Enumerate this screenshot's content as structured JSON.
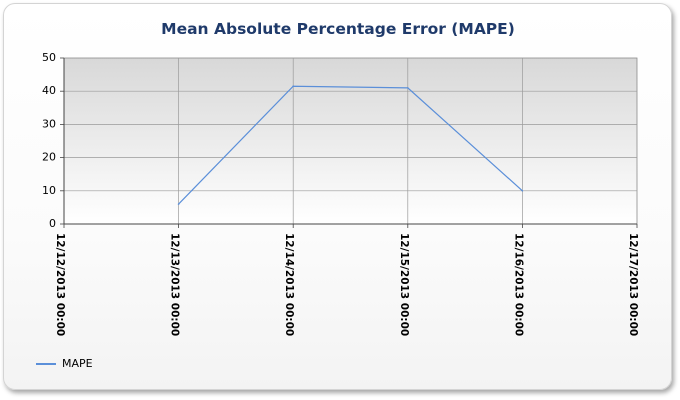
{
  "chart_data": {
    "type": "line",
    "title": "Mean Absolute Percentage Error (MAPE)",
    "xlabel": "",
    "ylabel": "",
    "x_ticks": [
      "12/12/2013 00:00",
      "12/13/2013 00:00",
      "12/14/2013 00:00",
      "12/15/2013 00:00",
      "12/16/2013 00:00",
      "12/17/2013 00:00"
    ],
    "ylim": [
      0,
      50
    ],
    "y_ticks": [
      0,
      10,
      20,
      30,
      40,
      50
    ],
    "grid": true,
    "legend_position": "bottom-left",
    "series": [
      {
        "name": "MAPE",
        "color": "#5b8fd9",
        "points": [
          {
            "x": "12/13/2013 00:00",
            "y": 6
          },
          {
            "x": "12/14/2013 00:00",
            "y": 41.5
          },
          {
            "x": "12/15/2013 00:00",
            "y": 41
          },
          {
            "x": "12/16/2013 00:00",
            "y": 10
          }
        ]
      }
    ]
  }
}
